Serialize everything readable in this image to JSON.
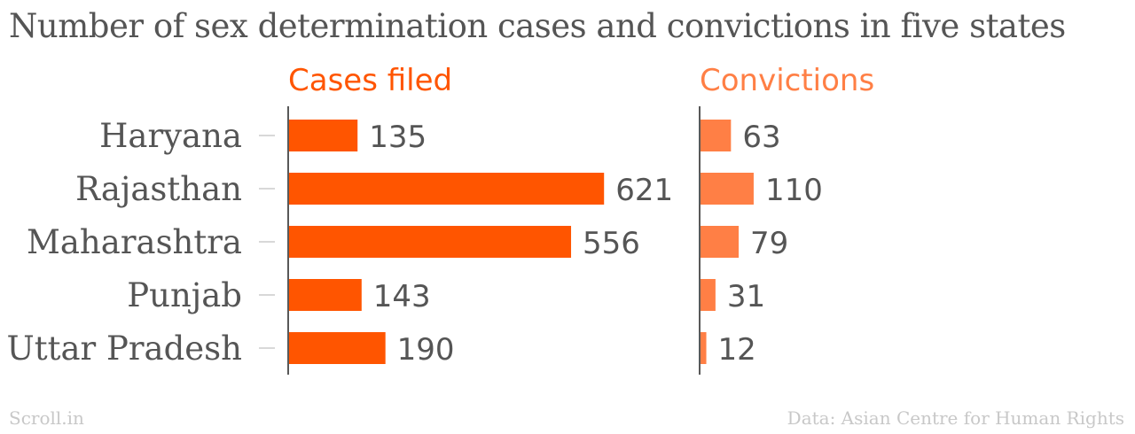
{
  "title": "Number of sex determination cases and convictions in five states",
  "footer": {
    "source_left": "Scroll.in",
    "source_right": "Data: Asian Centre for Human Rights"
  },
  "colors": {
    "cases": "#ff5500",
    "convictions": "#ff7f45",
    "text": "#555555",
    "footer": "#c8c8c8"
  },
  "chart_data": {
    "type": "bar",
    "orientation": "horizontal",
    "categories": [
      "Haryana",
      "Rajasthan",
      "Maharashtra",
      "Punjab",
      "Uttar Pradesh"
    ],
    "series": [
      {
        "name": "Cases filed",
        "values": [
          135,
          621,
          556,
          143,
          190
        ]
      },
      {
        "name": "Convictions",
        "values": [
          63,
          110,
          79,
          31,
          12
        ]
      }
    ],
    "legend": "panel headers",
    "grid": false
  }
}
